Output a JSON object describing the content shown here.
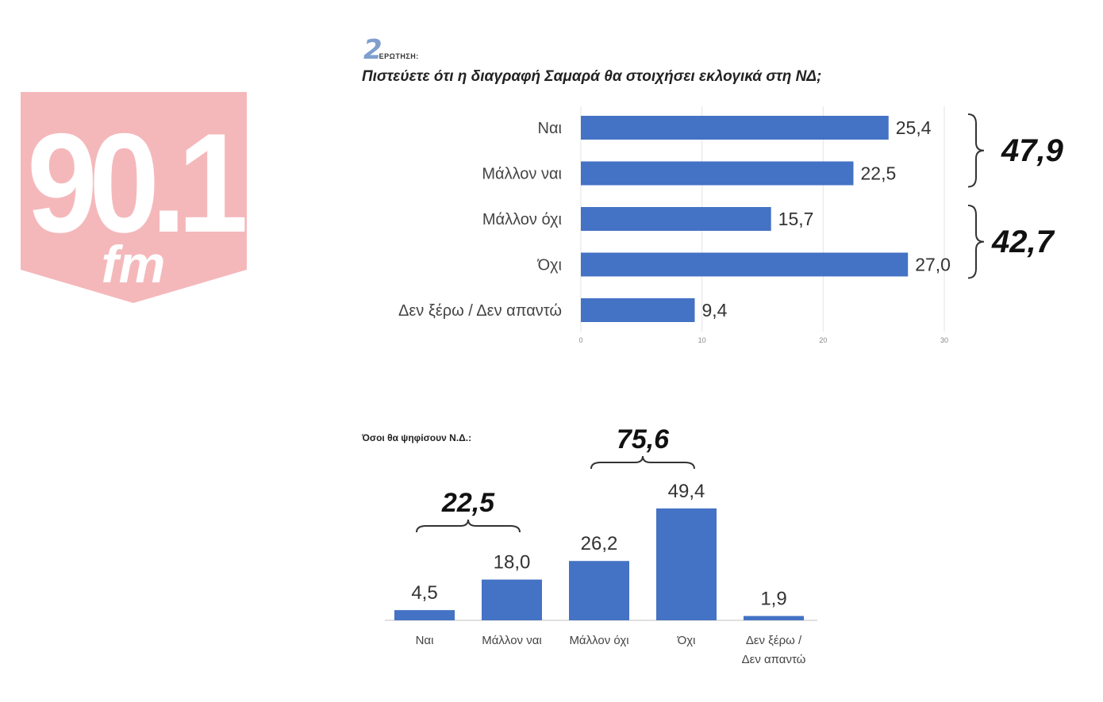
{
  "logo": {
    "number": "90.1",
    "suffix": "fm",
    "color": "#f4b8bb"
  },
  "question": {
    "number": "2",
    "word": "ΕΡΩΤΗΣΗ:",
    "title": "Πιστεύετε ότι η διαγραφή Σαμαρά θα στοιχήσει εκλογικά στη ΝΔ;"
  },
  "subtitle": "Όσοι θα ψηφίσουν Ν.Δ.:",
  "colors": {
    "bar": "#4472c4"
  },
  "chart_data": [
    {
      "type": "bar",
      "orientation": "horizontal",
      "categories": [
        "Ναι",
        "Μάλλον ναι",
        "Μάλλον όχι",
        "Όχι",
        "Δεν ξέρω / Δεν απαντώ"
      ],
      "values": [
        25.4,
        22.5,
        15.7,
        27.0,
        9.4
      ],
      "value_labels": [
        "25,4",
        "22,5",
        "15,7",
        "27,0",
        "9,4"
      ],
      "xlim": [
        0,
        30
      ],
      "x_ticks": [
        "0",
        "10",
        "20",
        "30"
      ],
      "grid": true,
      "brackets": [
        {
          "from": 0,
          "to": 1,
          "label": "47,9"
        },
        {
          "from": 2,
          "to": 3,
          "label": "42,7"
        }
      ]
    },
    {
      "type": "bar",
      "orientation": "vertical",
      "categories": [
        "Ναι",
        "Μάλλον ναι",
        "Μάλλον όχι",
        "Όχι",
        "Δεν ξέρω / Δεν απαντώ"
      ],
      "category_lines": [
        [
          "Ναι"
        ],
        [
          "Μάλλον ναι"
        ],
        [
          "Μάλλον όχι"
        ],
        [
          "Όχι"
        ],
        [
          "Δεν ξέρω /",
          "Δεν απαντώ"
        ]
      ],
      "values": [
        4.5,
        18.0,
        26.2,
        49.4,
        1.9
      ],
      "value_labels": [
        "4,5",
        "18,0",
        "26,2",
        "49,4",
        "1,9"
      ],
      "grid": false,
      "brackets": [
        {
          "from": 0,
          "to": 1,
          "label": "22,5"
        },
        {
          "from": 2,
          "to": 3,
          "label": "75,6"
        }
      ]
    }
  ]
}
